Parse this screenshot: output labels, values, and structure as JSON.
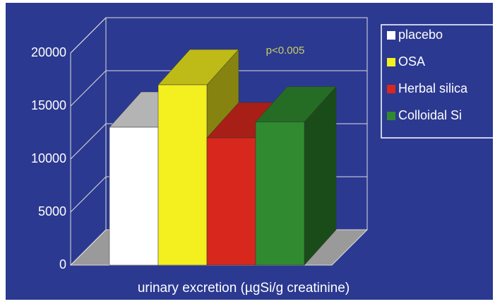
{
  "chart_data": {
    "type": "bar3d",
    "annotation": "p<0.005",
    "x_label": "urinary excretion (µgSi/g creatinine)",
    "series": [
      {
        "name": "placebo",
        "color": "#ffffff",
        "values": [
          13000
        ]
      },
      {
        "name": "OSA",
        "color": "#f4ef1e",
        "values": [
          17000
        ]
      },
      {
        "name": "Herbal silica",
        "color": "#d8281e",
        "values": [
          12000
        ]
      },
      {
        "name": "Colloidal Si",
        "color": "#2f8a30",
        "values": [
          13500
        ]
      }
    ],
    "ylim": [
      0,
      20000
    ],
    "yticks": [
      0,
      5000,
      10000,
      15000,
      20000
    ],
    "grid": true,
    "legend": "right"
  }
}
